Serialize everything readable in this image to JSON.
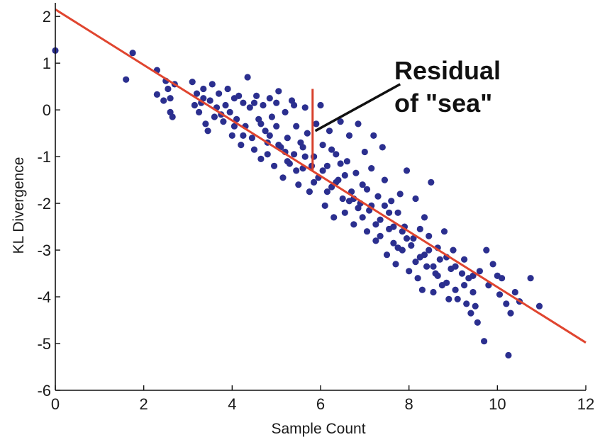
{
  "chart_data": {
    "type": "scatter",
    "title": "",
    "xlabel": "Sample Count",
    "ylabel": "KL Divergence",
    "xlim": [
      0,
      12
    ],
    "ylim": [
      -6,
      2.2
    ],
    "xticks": [
      0,
      2,
      4,
      6,
      8,
      10,
      12
    ],
    "yticks": [
      -6,
      -5,
      -4,
      -3,
      -2,
      -1,
      0,
      1,
      2
    ],
    "xtick_labels": [
      "0",
      "2",
      "4",
      "6",
      "8",
      "10",
      "12"
    ],
    "ytick_labels": [
      "-6",
      "-5",
      "-4",
      "-3",
      "-2",
      "-1",
      "0",
      "1",
      "2"
    ],
    "grid": false,
    "colors": {
      "points": "#2b2f8f",
      "fit_line": "#e0452f",
      "residual": "#d8402c",
      "pointer": "#111111"
    },
    "fit_line": {
      "x": [
        0,
        12
      ],
      "y": [
        2.15,
        -4.98
      ]
    },
    "residual": {
      "x": 5.82,
      "y_from": -1.3,
      "y_to": 0.45
    },
    "annotation": {
      "lines": [
        "Residual",
        "of \"sea\""
      ],
      "pointer_from": [
        7.8,
        0.55
      ],
      "pointer_to": [
        5.88,
        -0.45
      ]
    },
    "points": [
      [
        0,
        1.27
      ],
      [
        1.6,
        0.65
      ],
      [
        1.75,
        1.22
      ],
      [
        2.3,
        0.85
      ],
      [
        2.3,
        0.33
      ],
      [
        2.5,
        0.62
      ],
      [
        2.55,
        0.45
      ],
      [
        2.6,
        -0.05
      ],
      [
        2.65,
        -0.15
      ],
      [
        2.7,
        0.55
      ],
      [
        2.45,
        0.2
      ],
      [
        2.6,
        0.25
      ],
      [
        3.1,
        0.6
      ],
      [
        3.2,
        0.35
      ],
      [
        3.25,
        -0.05
      ],
      [
        3.3,
        0.15
      ],
      [
        3.35,
        0.45
      ],
      [
        3.4,
        -0.3
      ],
      [
        3.5,
        0.2
      ],
      [
        3.55,
        0.55
      ],
      [
        3.6,
        -0.15
      ],
      [
        3.7,
        0.35
      ],
      [
        3.8,
        -0.25
      ],
      [
        3.85,
        0.1
      ],
      [
        3.9,
        0.45
      ],
      [
        4.0,
        -0.55
      ],
      [
        4.05,
        0.25
      ],
      [
        4.1,
        -0.2
      ],
      [
        4.2,
        -0.75
      ],
      [
        4.25,
        0.15
      ],
      [
        4.3,
        -0.35
      ],
      [
        4.35,
        0.7
      ],
      [
        4.4,
        0.05
      ],
      [
        4.45,
        -0.6
      ],
      [
        4.5,
        -0.85
      ],
      [
        4.55,
        0.3
      ],
      [
        4.6,
        -0.2
      ],
      [
        4.65,
        -1.05
      ],
      [
        4.7,
        0.1
      ],
      [
        4.75,
        -0.45
      ],
      [
        4.8,
        -0.7
      ],
      [
        4.85,
        0.25
      ],
      [
        4.9,
        -0.15
      ],
      [
        4.95,
        -1.2
      ],
      [
        5.0,
        -0.35
      ],
      [
        5.05,
        0.4
      ],
      [
        5.1,
        -0.8
      ],
      [
        5.15,
        -1.45
      ],
      [
        5.2,
        -0.05
      ],
      [
        5.25,
        -0.6
      ],
      [
        5.3,
        -1.15
      ],
      [
        5.35,
        0.2
      ],
      [
        5.4,
        -0.95
      ],
      [
        5.45,
        -0.35
      ],
      [
        5.5,
        -1.6
      ],
      [
        5.55,
        -0.7
      ],
      [
        5.6,
        -1.25
      ],
      [
        5.65,
        0.05
      ],
      [
        5.7,
        -0.5
      ],
      [
        5.75,
        -1.75
      ],
      [
        5.85,
        -1.0
      ],
      [
        5.9,
        -0.3
      ],
      [
        5.95,
        -1.45
      ],
      [
        6.0,
        0.1
      ],
      [
        6.05,
        -0.75
      ],
      [
        6.1,
        -2.05
      ],
      [
        6.15,
        -1.2
      ],
      [
        6.2,
        -0.45
      ],
      [
        6.25,
        -1.65
      ],
      [
        6.3,
        -2.3
      ],
      [
        6.35,
        -0.95
      ],
      [
        6.4,
        -1.5
      ],
      [
        6.45,
        -0.25
      ],
      [
        6.5,
        -1.9
      ],
      [
        6.55,
        -2.2
      ],
      [
        6.6,
        -1.1
      ],
      [
        6.65,
        -0.55
      ],
      [
        6.7,
        -1.75
      ],
      [
        6.75,
        -2.45
      ],
      [
        6.8,
        -1.35
      ],
      [
        6.85,
        -0.3
      ],
      [
        6.9,
        -2.0
      ],
      [
        6.95,
        -1.6
      ],
      [
        7.0,
        -0.9
      ],
      [
        7.05,
        -2.6
      ],
      [
        7.1,
        -2.15
      ],
      [
        7.15,
        -1.25
      ],
      [
        7.2,
        -0.55
      ],
      [
        7.25,
        -2.8
      ],
      [
        7.3,
        -1.85
      ],
      [
        7.35,
        -2.35
      ],
      [
        7.4,
        -0.8
      ],
      [
        7.45,
        -1.5
      ],
      [
        7.5,
        -3.1
      ],
      [
        7.55,
        -2.55
      ],
      [
        7.6,
        -1.95
      ],
      [
        7.65,
        -2.85
      ],
      [
        7.7,
        -3.3
      ],
      [
        7.75,
        -2.2
      ],
      [
        7.8,
        -1.8
      ],
      [
        7.85,
        -3.0
      ],
      [
        7.9,
        -2.5
      ],
      [
        7.95,
        -1.3
      ],
      [
        8.0,
        -3.45
      ],
      [
        8.1,
        -2.75
      ],
      [
        8.15,
        -1.9
      ],
      [
        8.2,
        -3.6
      ],
      [
        8.25,
        -3.15
      ],
      [
        8.3,
        -3.85
      ],
      [
        8.35,
        -2.3
      ],
      [
        8.4,
        -3.35
      ],
      [
        8.45,
        -2.7
      ],
      [
        8.5,
        -1.55
      ],
      [
        8.55,
        -3.9
      ],
      [
        8.6,
        -3.5
      ],
      [
        8.65,
        -2.95
      ],
      [
        8.7,
        -3.2
      ],
      [
        8.75,
        -3.75
      ],
      [
        8.8,
        -2.6
      ],
      [
        8.85,
        -3.7
      ],
      [
        8.9,
        -4.05
      ],
      [
        8.95,
        -3.4
      ],
      [
        9.0,
        -3.0
      ],
      [
        9.05,
        -3.85
      ],
      [
        9.1,
        -4.05
      ],
      [
        9.2,
        -3.5
      ],
      [
        9.25,
        -3.2
      ],
      [
        9.3,
        -4.15
      ],
      [
        9.35,
        -3.6
      ],
      [
        9.4,
        -4.35
      ],
      [
        9.45,
        -3.9
      ],
      [
        9.5,
        -4.2
      ],
      [
        9.55,
        -4.55
      ],
      [
        9.6,
        -3.45
      ],
      [
        9.7,
        -4.95
      ],
      [
        9.75,
        -3.0
      ],
      [
        9.8,
        -3.75
      ],
      [
        9.9,
        -3.3
      ],
      [
        10.0,
        -3.55
      ],
      [
        10.05,
        -3.95
      ],
      [
        10.1,
        -3.6
      ],
      [
        10.2,
        -4.15
      ],
      [
        10.25,
        -5.25
      ],
      [
        10.3,
        -4.35
      ],
      [
        10.4,
        -3.9
      ],
      [
        10.5,
        -4.1
      ],
      [
        10.75,
        -3.6
      ],
      [
        10.95,
        -4.2
      ],
      [
        3.15,
        0.1
      ],
      [
        3.45,
        -0.45
      ],
      [
        3.65,
        0.05
      ],
      [
        3.95,
        -0.05
      ],
      [
        4.15,
        0.3
      ],
      [
        4.5,
        0.15
      ],
      [
        4.8,
        -0.95
      ],
      [
        5.0,
        0.15
      ],
      [
        5.2,
        -0.9
      ],
      [
        5.4,
        0.1
      ],
      [
        5.6,
        -0.8
      ],
      [
        5.8,
        -1.2
      ],
      [
        6.05,
        -1.3
      ],
      [
        6.25,
        -0.85
      ],
      [
        6.45,
        -1.15
      ],
      [
        6.65,
        -1.95
      ],
      [
        6.85,
        -2.1
      ],
      [
        7.05,
        -1.7
      ],
      [
        7.25,
        -2.45
      ],
      [
        7.45,
        -2.05
      ],
      [
        7.65,
        -2.5
      ],
      [
        7.85,
        -2.6
      ],
      [
        8.05,
        -2.9
      ],
      [
        8.25,
        -2.55
      ],
      [
        8.45,
        -3.0
      ],
      [
        8.65,
        -3.55
      ],
      [
        8.85,
        -3.15
      ],
      [
        9.05,
        -3.35
      ],
      [
        9.25,
        -3.75
      ],
      [
        9.45,
        -3.55
      ],
      [
        3.35,
        0.25
      ],
      [
        3.75,
        -0.1
      ],
      [
        4.05,
        -0.35
      ],
      [
        4.25,
        -0.55
      ],
      [
        4.65,
        -0.3
      ],
      [
        4.85,
        -0.55
      ],
      [
        5.05,
        -0.75
      ],
      [
        5.25,
        -1.1
      ],
      [
        5.45,
        -1.3
      ],
      [
        5.65,
        -1.0
      ],
      [
        5.85,
        -1.55
      ],
      [
        6.15,
        -1.75
      ],
      [
        6.35,
        -1.55
      ],
      [
        6.55,
        -1.4
      ],
      [
        6.75,
        -1.9
      ],
      [
        6.95,
        -2.3
      ],
      [
        7.15,
        -2.05
      ],
      [
        7.35,
        -2.7
      ],
      [
        7.55,
        -2.2
      ],
      [
        7.75,
        -2.95
      ],
      [
        7.95,
        -2.75
      ],
      [
        8.15,
        -3.25
      ],
      [
        8.35,
        -3.1
      ],
      [
        8.55,
        -3.35
      ]
    ]
  }
}
